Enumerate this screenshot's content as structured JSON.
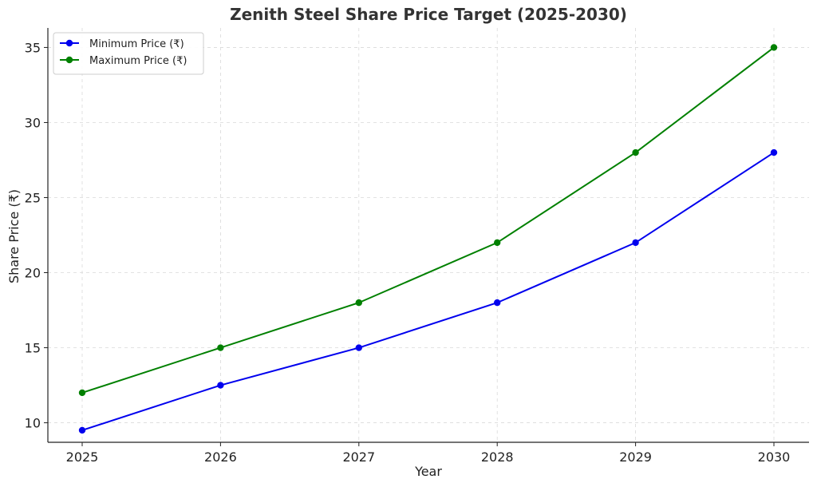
{
  "chart_data": {
    "type": "line",
    "title": "Zenith Steel Share Price Target (2025-2030)",
    "xlabel": "Year",
    "ylabel": "Share Price (₹)",
    "x": [
      "2025",
      "2026",
      "2027",
      "2028",
      "2029",
      "2030"
    ],
    "yticks": [
      "10",
      "15",
      "20",
      "25",
      "30",
      "35"
    ],
    "ylim": [
      8.7,
      36.3
    ],
    "grid": true,
    "legend_position": "top-left",
    "series": [
      {
        "name": "Minimum Price (₹)",
        "color": "#0000ee",
        "values": [
          9.5,
          12.5,
          15,
          18,
          22,
          28
        ]
      },
      {
        "name": "Maximum Price (₹)",
        "color": "#008000",
        "values": [
          12,
          15,
          18,
          22,
          28,
          35
        ]
      }
    ]
  }
}
